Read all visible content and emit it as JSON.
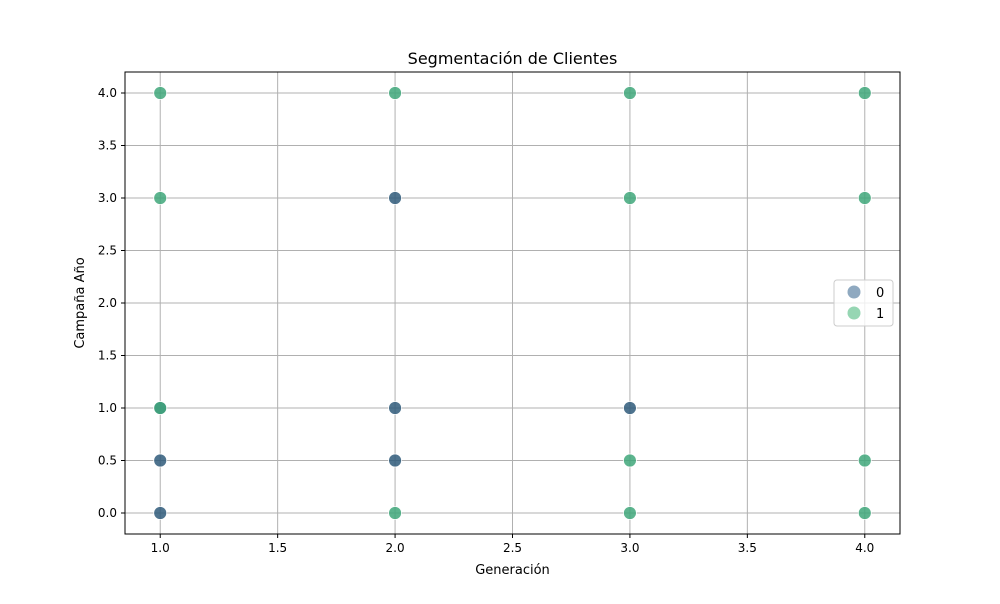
{
  "chart_data": {
    "type": "scatter",
    "title": "Segmentación de Clientes",
    "xlabel": "Generación",
    "ylabel": "Campaña Año",
    "xlim": [
      0.85,
      4.15
    ],
    "ylim": [
      -0.2,
      4.2
    ],
    "xticks": [
      1.0,
      1.5,
      2.0,
      2.5,
      3.0,
      3.5,
      4.0
    ],
    "xtick_labels": [
      "1.0",
      "1.5",
      "2.0",
      "2.5",
      "3.0",
      "3.5",
      "4.0"
    ],
    "yticks": [
      0.0,
      0.5,
      1.0,
      1.5,
      2.0,
      2.5,
      3.0,
      3.5,
      4.0
    ],
    "ytick_labels": [
      "0.0",
      "0.5",
      "1.0",
      "1.5",
      "2.0",
      "2.5",
      "3.0",
      "3.5",
      "4.0"
    ],
    "grid": true,
    "legend_position": "center-right",
    "series": [
      {
        "name": "0",
        "color": "#2f5b7a",
        "legend_color": "#8fa9c0",
        "points": [
          {
            "x": 1.0,
            "y": 0.0
          },
          {
            "x": 1.0,
            "y": 0.5
          },
          {
            "x": 1.0,
            "y": 1.0
          },
          {
            "x": 2.0,
            "y": 0.5
          },
          {
            "x": 2.0,
            "y": 1.0
          },
          {
            "x": 2.0,
            "y": 3.0
          },
          {
            "x": 3.0,
            "y": 1.0
          }
        ]
      },
      {
        "name": "1",
        "color": "#3fa77a",
        "legend_color": "#96d6b3",
        "points": [
          {
            "x": 1.0,
            "y": 1.0
          },
          {
            "x": 1.0,
            "y": 3.0
          },
          {
            "x": 1.0,
            "y": 4.0
          },
          {
            "x": 2.0,
            "y": 0.0
          },
          {
            "x": 2.0,
            "y": 4.0
          },
          {
            "x": 3.0,
            "y": 0.0
          },
          {
            "x": 3.0,
            "y": 0.5
          },
          {
            "x": 3.0,
            "y": 3.0
          },
          {
            "x": 3.0,
            "y": 4.0
          },
          {
            "x": 4.0,
            "y": 0.0
          },
          {
            "x": 4.0,
            "y": 0.5
          },
          {
            "x": 4.0,
            "y": 3.0
          },
          {
            "x": 4.0,
            "y": 4.0
          }
        ]
      }
    ]
  }
}
